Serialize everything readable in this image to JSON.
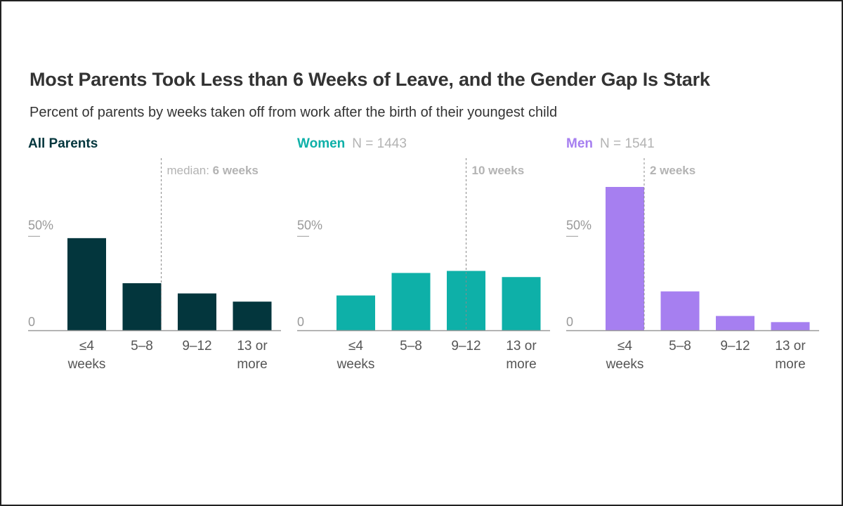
{
  "title": "Most Parents Took Less than 6 Weeks of Leave, and the Gender Gap Is Stark",
  "subtitle": "Percent of parents by weeks taken off from work after the birth of their youngest child",
  "chart_data": [
    {
      "type": "bar",
      "panel_title": "All Parents",
      "n_label": "",
      "color": "#03363d",
      "categories": [
        [
          "≤4",
          "weeks"
        ],
        [
          "5–8"
        ],
        [
          "9–12"
        ],
        [
          "13 or",
          "more"
        ]
      ],
      "values": [
        45,
        23,
        18,
        14
      ],
      "ylim": [
        0,
        70
      ],
      "y_tick_labels": [
        {
          "value": 0,
          "label": "0"
        },
        {
          "value": 50,
          "label": "50%"
        }
      ],
      "median_position": 1.35,
      "median_prefix": "median: ",
      "median_value": "6 weeks"
    },
    {
      "type": "bar",
      "panel_title": "Women",
      "n_label": "N = 1443",
      "color": "#0eb0a8",
      "categories": [
        [
          "≤4",
          "weeks"
        ],
        [
          "5–8"
        ],
        [
          "9–12"
        ],
        [
          "13 or",
          "more"
        ]
      ],
      "values": [
        17,
        28,
        29,
        26
      ],
      "ylim": [
        0,
        70
      ],
      "y_tick_labels": [
        {
          "value": 0,
          "label": "0"
        },
        {
          "value": 50,
          "label": "50%"
        }
      ],
      "median_position": 2.0,
      "median_prefix": "",
      "median_value": "10 weeks"
    },
    {
      "type": "bar",
      "panel_title": "Men",
      "n_label": "N = 1541",
      "color": "#a67ff0",
      "categories": [
        [
          "≤4",
          "weeks"
        ],
        [
          "5–8"
        ],
        [
          "9–12"
        ],
        [
          "13 or",
          "more"
        ]
      ],
      "values": [
        70,
        19,
        7,
        4
      ],
      "ylim": [
        0,
        70
      ],
      "y_tick_labels": [
        {
          "value": 0,
          "label": "0"
        },
        {
          "value": 50,
          "label": "50%"
        }
      ],
      "median_position": 0.35,
      "median_prefix": "",
      "median_value": "2 weeks"
    }
  ]
}
